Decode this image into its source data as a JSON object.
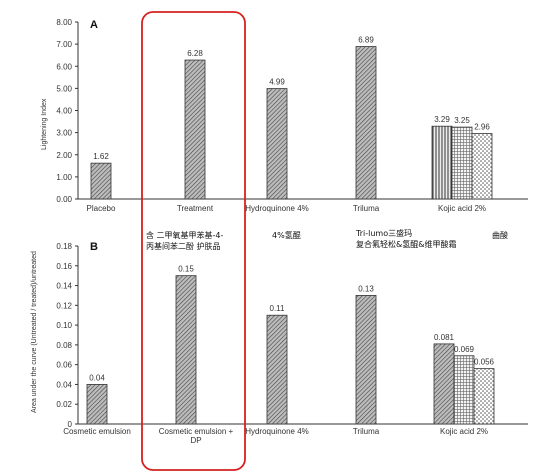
{
  "chart_data": [
    {
      "type": "bar",
      "panel": "A",
      "ylabel": "Lightening Index",
      "ylim": [
        0,
        8
      ],
      "yticks": [
        "0.00",
        "1.00",
        "2.00",
        "3.00",
        "4.00",
        "5.00",
        "6.00",
        "7.00",
        "8.00"
      ],
      "categories": [
        "Placebo",
        "Treatment",
        "Hydroquinone 4%",
        "Triluma",
        "Kojic acid 2%"
      ],
      "bars": [
        {
          "category_index": 0,
          "value": 1.62,
          "label": "1.62",
          "pattern": "hatch"
        },
        {
          "category_index": 1,
          "value": 6.28,
          "label": "6.28",
          "pattern": "hatch"
        },
        {
          "category_index": 2,
          "value": 4.99,
          "label": "4.99",
          "pattern": "hatch"
        },
        {
          "category_index": 3,
          "value": 6.89,
          "label": "6.89",
          "pattern": "hatch"
        },
        {
          "category_index": 4,
          "value": 3.29,
          "label": "3.29",
          "pattern": "vlines"
        },
        {
          "category_index": 4,
          "value": 3.25,
          "label": "3.25",
          "pattern": "grid"
        },
        {
          "category_index": 4,
          "value": 2.96,
          "label": "2.96",
          "pattern": "dots"
        }
      ]
    },
    {
      "type": "bar",
      "panel": "B",
      "ylabel": "Area under the curve (Untreated / treated)/untreated",
      "ylim": [
        0,
        0.18
      ],
      "yticks": [
        "0",
        "0.02",
        "0.04",
        "0.06",
        "0.08",
        "0.10",
        "0.12",
        "0.14",
        "0.16",
        "0.18"
      ],
      "categories": [
        "Cosmetic emulsion",
        "Cosmetic emulsion + DP",
        "Hydroquinone 4%",
        "Triluma",
        "Kojic acid 2%"
      ],
      "category_lines": [
        [
          "Cosmetic emulsion"
        ],
        [
          "Cosmetic emulsion +",
          "DP"
        ],
        [
          "Hydroquinone 4%"
        ],
        [
          "Triluma"
        ],
        [
          "Kojic acid 2%"
        ]
      ],
      "bars": [
        {
          "category_index": 0,
          "value": 0.04,
          "label": "0.04",
          "pattern": "hatch"
        },
        {
          "category_index": 1,
          "value": 0.15,
          "label": "0.15",
          "pattern": "hatch"
        },
        {
          "category_index": 2,
          "value": 0.11,
          "label": "0.11",
          "pattern": "hatch"
        },
        {
          "category_index": 3,
          "value": 0.13,
          "label": "0.13",
          "pattern": "hatch"
        },
        {
          "category_index": 4,
          "value": 0.081,
          "label": "0.081",
          "pattern": "hatch"
        },
        {
          "category_index": 4,
          "value": 0.069,
          "label": "0.069",
          "pattern": "grid"
        },
        {
          "category_index": 4,
          "value": 0.056,
          "label": "0.056",
          "pattern": "dots"
        }
      ]
    }
  ],
  "annotations": {
    "treatment_cn": [
      "含 二甲氧基甲苯基-4-",
      "丙基间苯二酚 护肤品"
    ],
    "hydroquinone_cn": "4%氢醌",
    "triluma_cn": [
      "Tri-lumo三盛玛",
      "复合氟轻松&氢醌&维甲酸霜"
    ],
    "kojic_cn": "曲酸"
  },
  "highlight_color": "#d62020"
}
